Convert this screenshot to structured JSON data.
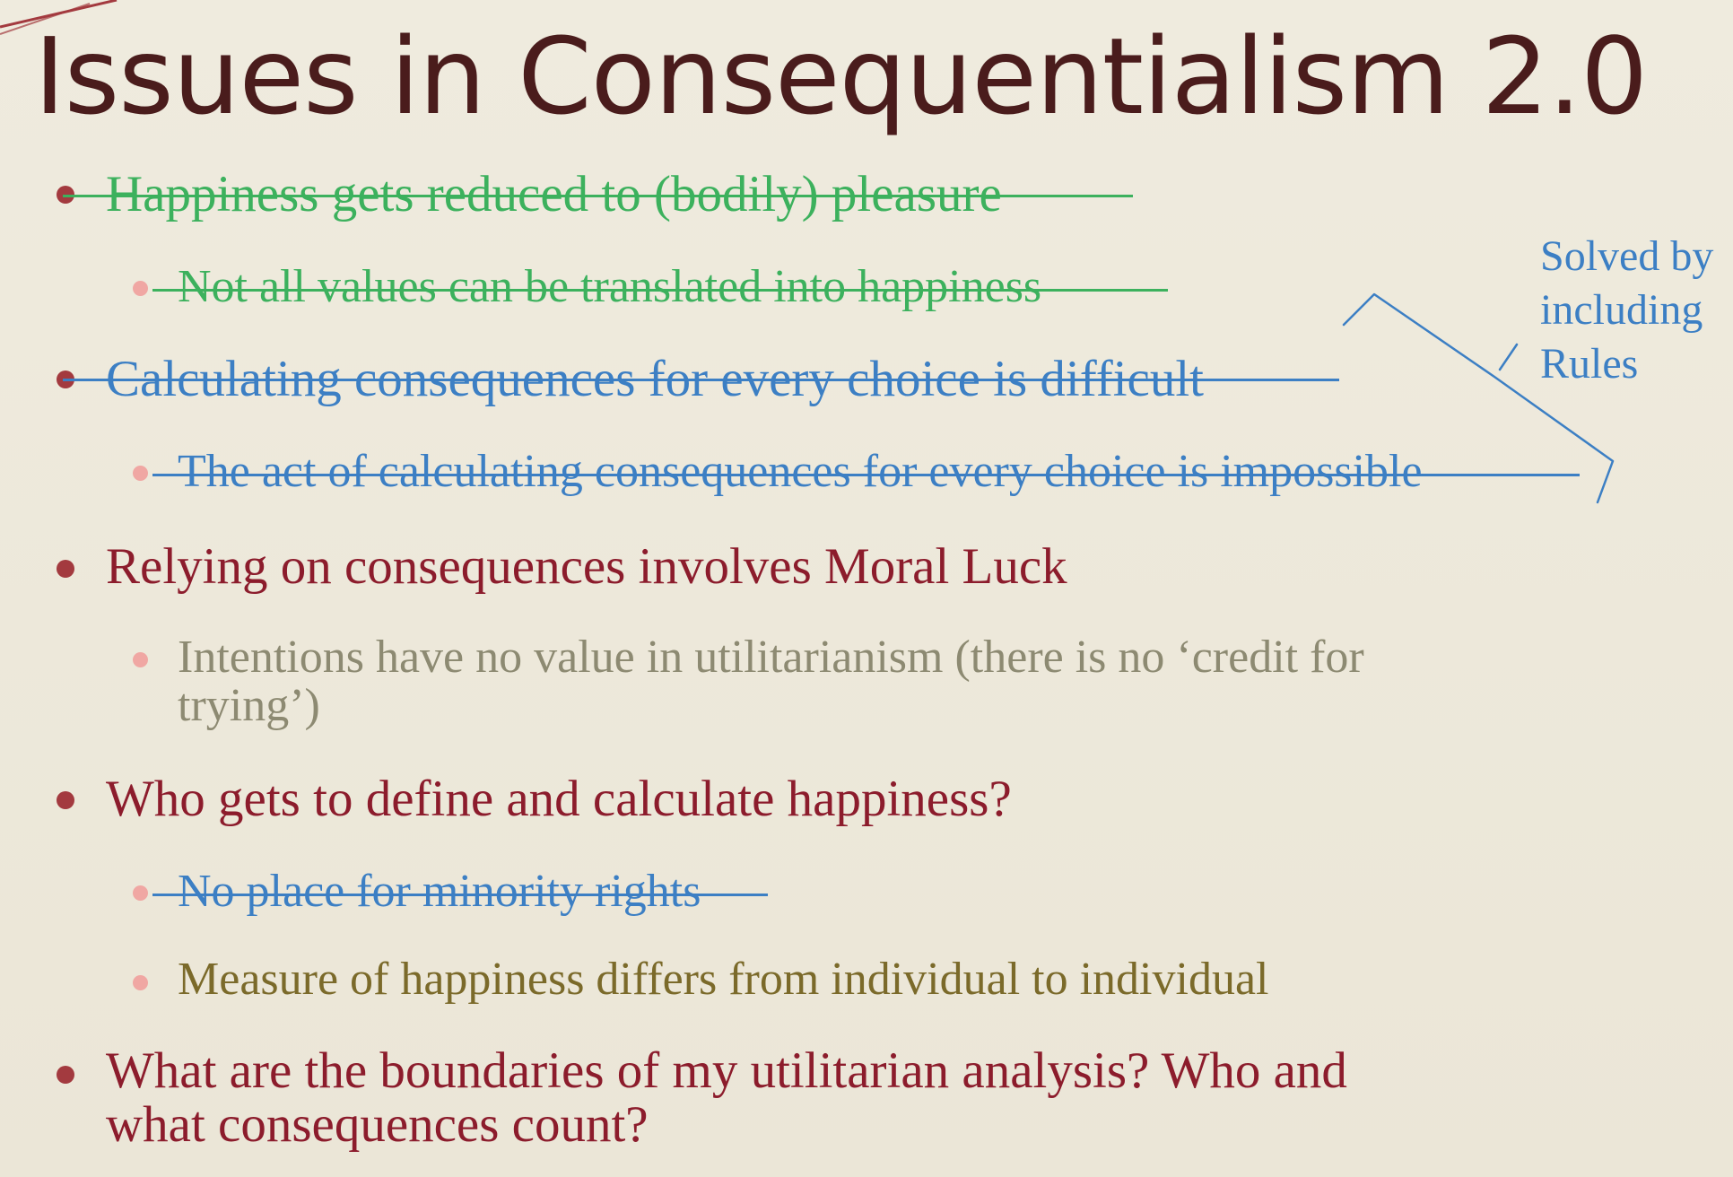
{
  "title": "Issues in Consequentialism 2.0",
  "items": [
    {
      "text": "Happiness gets reduced to (bodily) pleasure",
      "level": 1,
      "struck": true,
      "color": "#3cb15d"
    },
    {
      "text": "Not all values can be translated into happiness",
      "level": 2,
      "struck": true,
      "color": "#3cb15d"
    },
    {
      "text": "Calculating consequences for every choice is difficult",
      "level": 1,
      "struck": true,
      "color": "#3c7fc4"
    },
    {
      "text": "The act of calculating consequences for every choice is impossible",
      "level": 2,
      "struck": true,
      "color": "#3c7fc4"
    },
    {
      "text": "Relying on consequences involves Moral Luck",
      "level": 1,
      "struck": false,
      "color": "#8c1c2c"
    },
    {
      "text": "Intentions have no value in utilitarianism (there is no ‘credit for",
      "text_line2": "trying’)",
      "level": 2,
      "struck": false,
      "color": "#8d8a72"
    },
    {
      "text": "Who gets to define and calculate happiness?",
      "level": 1,
      "struck": false,
      "color": "#8c1c2c"
    },
    {
      "text": "No place for minority rights",
      "level": 2,
      "struck": true,
      "color": "#3c7fc4"
    },
    {
      "text": "Measure of happiness differs from individual to individual",
      "level": 2,
      "struck": false,
      "color": "#7b6a2a"
    },
    {
      "text": "What are the boundaries of my utilitarian analysis? Who and",
      "text_line2": "what consequences count?",
      "level": 1,
      "struck": false,
      "color": "#8c1c2c"
    }
  ],
  "annotation": {
    "lines": [
      "Solved by",
      "including",
      "Rules"
    ],
    "color": "#3c7fc4"
  }
}
